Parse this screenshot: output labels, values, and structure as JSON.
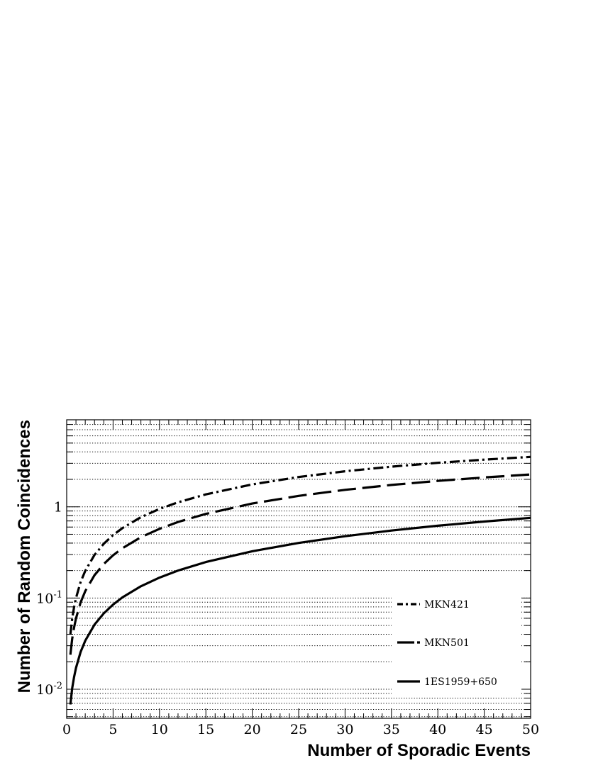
{
  "chart_data": {
    "type": "line",
    "title": "",
    "xlabel": "Number of Sporadic Events",
    "ylabel": "Number of Random Coincidences",
    "x_scale": "linear",
    "y_scale": "log",
    "xlim": [
      0,
      50
    ],
    "ylim": [
      0.0048,
      9.0
    ],
    "grid": "horizontal dotted lines at each log decade subdivision",
    "legend_position": "bottom-right",
    "x_ticks": [
      "0",
      "5",
      "10",
      "15",
      "20",
      "25",
      "30",
      "35",
      "40",
      "45",
      "50"
    ],
    "y_ticks": [
      {
        "base": "10",
        "exp": "-2",
        "value": 0.01
      },
      {
        "base": "10",
        "exp": "-1",
        "value": 0.1
      },
      {
        "base": "1",
        "exp": "",
        "value": 1
      }
    ],
    "x": [
      0.4,
      0.6,
      0.8,
      1,
      1.5,
      2,
      3,
      4,
      5,
      6,
      8,
      10,
      12,
      15,
      20,
      25,
      30,
      35,
      40,
      45,
      50
    ],
    "series": [
      {
        "name": "MKN421",
        "line_style": "dash-dot",
        "values": [
          0.0399,
          0.0599,
          0.0799,
          0.0998,
          0.1494,
          0.1988,
          0.297,
          0.3939,
          0.4896,
          0.584,
          0.769,
          0.948,
          1.121,
          1.369,
          1.762,
          2.122,
          2.453,
          2.757,
          3.035,
          3.292,
          3.528
        ]
      },
      {
        "name": "MKN501",
        "line_style": "long-dash",
        "values": [
          0.0239,
          0.0359,
          0.0478,
          0.0597,
          0.0895,
          0.1191,
          0.1779,
          0.2362,
          0.294,
          0.351,
          0.464,
          0.574,
          0.682,
          0.837,
          1.087,
          1.319,
          1.535,
          1.737,
          1.925,
          2.099,
          2.262
        ]
      },
      {
        "name": "1ES1959+650",
        "line_style": "solid",
        "values": [
          0.0068,
          0.0103,
          0.0137,
          0.0171,
          0.0256,
          0.0341,
          0.0511,
          0.0679,
          0.0847,
          0.1015,
          0.1346,
          0.1674,
          0.2,
          0.248,
          0.326,
          0.402,
          0.476,
          0.549,
          0.62,
          0.69,
          0.757
        ]
      }
    ]
  }
}
